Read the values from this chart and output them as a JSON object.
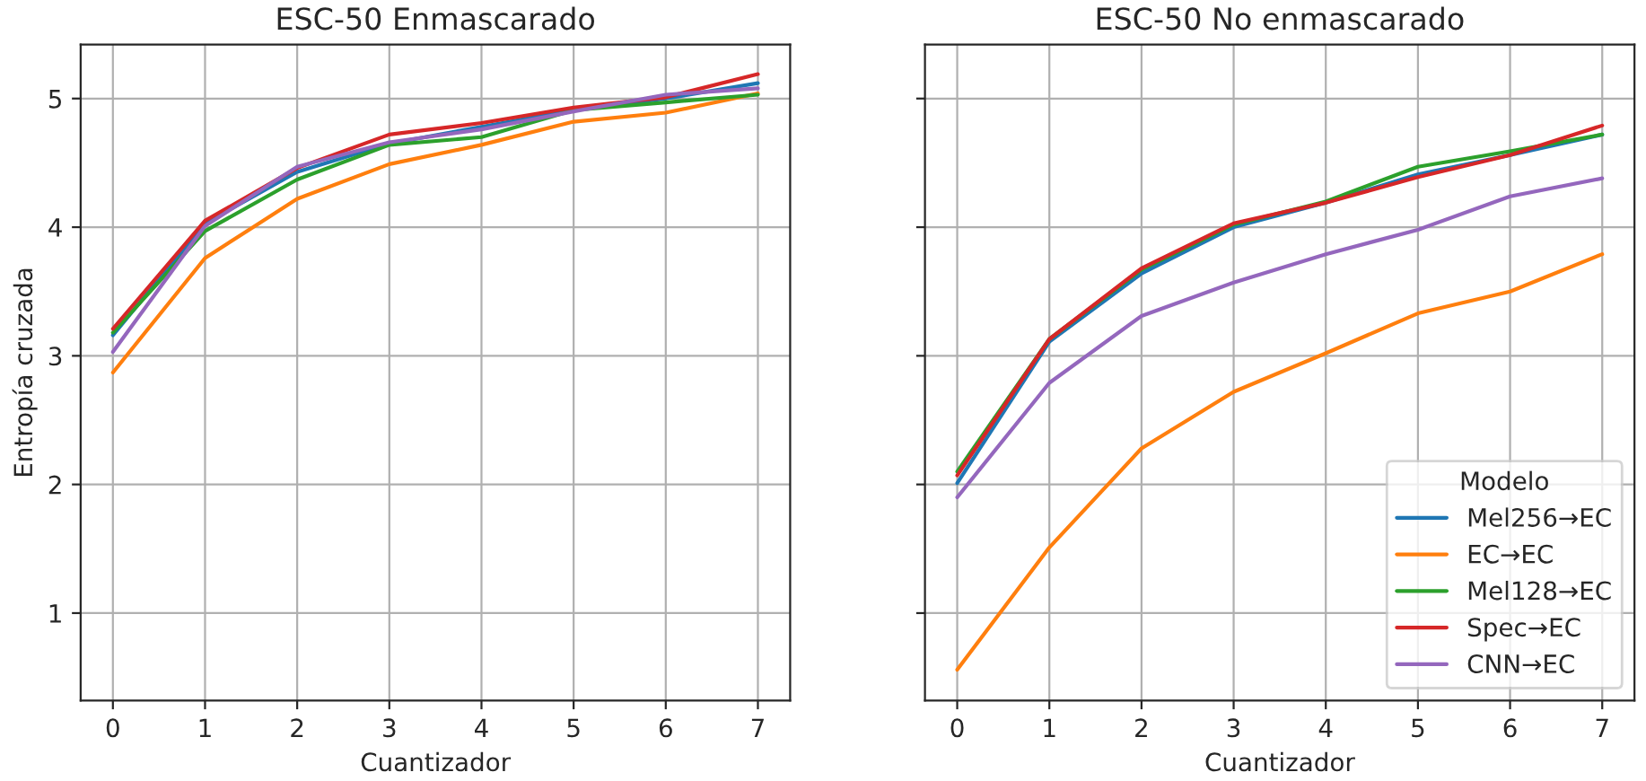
{
  "chart_data": [
    {
      "type": "line",
      "title": "ESC-50 Enmascarado",
      "xlabel": "Cuantizador",
      "ylabel": "Entropía cruzada",
      "x": [
        0,
        1,
        2,
        3,
        4,
        5,
        6,
        7
      ],
      "xlim": [
        -0.35,
        7.35
      ],
      "xticks": [
        0,
        1,
        2,
        3,
        4,
        5,
        6,
        7
      ],
      "ylim": [
        0.32,
        5.42
      ],
      "yticks": [
        1,
        2,
        3,
        4,
        5
      ],
      "grid": true,
      "legend": false,
      "marker": "none",
      "line_style": "solid",
      "series": [
        {
          "color": "#1f77b4",
          "values": [
            3.16,
            4.03,
            4.43,
            4.65,
            4.78,
            4.91,
            5.0,
            5.12
          ]
        },
        {
          "color": "#ff7f0e",
          "values": [
            2.87,
            3.76,
            4.22,
            4.49,
            4.64,
            4.82,
            4.89,
            5.04
          ]
        },
        {
          "color": "#2ca02c",
          "values": [
            3.18,
            3.97,
            4.37,
            4.64,
            4.7,
            4.91,
            4.97,
            5.03
          ]
        },
        {
          "color": "#d62728",
          "values": [
            3.21,
            4.05,
            4.46,
            4.72,
            4.81,
            4.93,
            5.01,
            5.19
          ]
        },
        {
          "color": "#9467bd",
          "values": [
            3.03,
            4.01,
            4.47,
            4.66,
            4.76,
            4.9,
            5.03,
            5.08
          ]
        }
      ]
    },
    {
      "type": "line",
      "title": "ESC-50 No enmascarado",
      "xlabel": "Cuantizador",
      "legend_title": "Modelo",
      "x": [
        0,
        1,
        2,
        3,
        4,
        5,
        6,
        7
      ],
      "xlim": [
        -0.35,
        7.35
      ],
      "xticks": [
        0,
        1,
        2,
        3,
        4,
        5,
        6,
        7
      ],
      "ylim": [
        0.32,
        5.42
      ],
      "yticks": [
        1,
        2,
        3,
        4,
        5
      ],
      "tick_labels": "x",
      "grid": true,
      "legend": "bottom right",
      "marker": "none",
      "line_style": "solid",
      "series": [
        {
          "name": "Mel256→EC",
          "color": "#1f77b4",
          "values": [
            2.01,
            3.11,
            3.64,
            4.0,
            4.19,
            4.41,
            4.56,
            4.72
          ]
        },
        {
          "name": "EC→EC",
          "color": "#ff7f0e",
          "values": [
            0.56,
            1.51,
            2.28,
            2.72,
            3.02,
            3.33,
            3.5,
            3.79
          ]
        },
        {
          "name": "Mel128→EC",
          "color": "#2ca02c",
          "values": [
            2.1,
            3.13,
            3.67,
            4.02,
            4.2,
            4.47,
            4.59,
            4.72
          ]
        },
        {
          "name": "Spec→EC",
          "color": "#d62728",
          "values": [
            2.07,
            3.13,
            3.68,
            4.03,
            4.19,
            4.39,
            4.56,
            4.79
          ]
        },
        {
          "name": "CNN→EC",
          "color": "#9467bd",
          "values": [
            1.9,
            2.79,
            3.31,
            3.57,
            3.79,
            3.98,
            4.24,
            4.38
          ]
        }
      ]
    }
  ]
}
